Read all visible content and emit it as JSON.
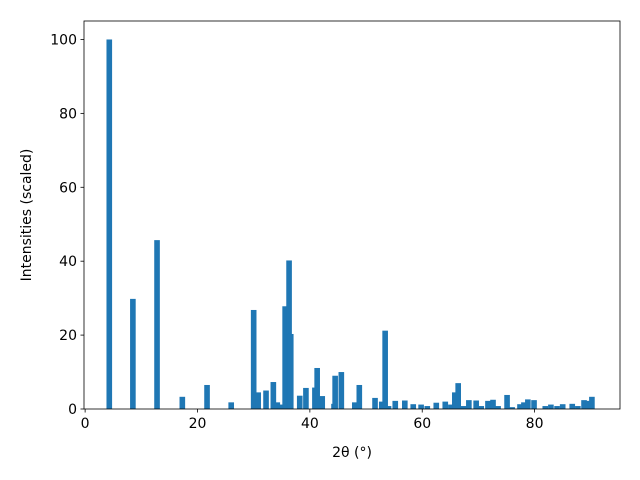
{
  "chart_data": {
    "type": "bar",
    "xlabel": "2θ (°)",
    "ylabel": "Intensities (scaled)",
    "color": "#1f77b4",
    "x": [
      4.3,
      8.5,
      12.8,
      17.3,
      21.7,
      26,
      30,
      30.8,
      32.2,
      33.5,
      34.2,
      34.7,
      35.6,
      36.3,
      36.6,
      38.2,
      39.3,
      40.9,
      41.3,
      42.2,
      44.3,
      44.5,
      45.6,
      48,
      48.8,
      51.6,
      52.8,
      53.4,
      54,
      55.2,
      56.9,
      58.4,
      59.8,
      60.9,
      62.5,
      64.1,
      65.1,
      65.8,
      66.4,
      67.4,
      68.3,
      69.6,
      70.5,
      71.7,
      72.6,
      73.5,
      75.1,
      76,
      77.4,
      78.1,
      78.8,
      79.9,
      81.9,
      82.9,
      84,
      85,
      86.7,
      87.7,
      88.8,
      89.5,
      90.2
    ],
    "values": [
      100,
      29.8,
      45.7,
      3.3,
      6.5,
      1.8,
      26.8,
      4.5,
      5,
      7.3,
      1.8,
      1.2,
      27.8,
      40.2,
      20.3,
      3.6,
      5.7,
      5.8,
      11.1,
      3.5,
      1.4,
      9,
      10,
      1.8,
      6.5,
      3,
      2,
      21.2,
      0.8,
      2.2,
      2.3,
      1.3,
      1.2,
      0.8,
      1.7,
      2,
      1.2,
      4.5,
      7,
      0.8,
      2.4,
      2.3,
      0.8,
      2.2,
      2.5,
      0.8,
      3.8,
      0.5,
      1.3,
      1.8,
      2.6,
      2.4,
      0.8,
      1.2,
      0.8,
      1.3,
      1.4,
      0.8,
      2.4,
      2.2,
      3.3
    ],
    "xlim": [
      -0.2,
      95.2
    ],
    "xticks": [
      0,
      20,
      40,
      60,
      80
    ],
    "ylim": [
      0,
      105
    ],
    "yticks": [
      0,
      20,
      40,
      60,
      80,
      100
    ]
  }
}
